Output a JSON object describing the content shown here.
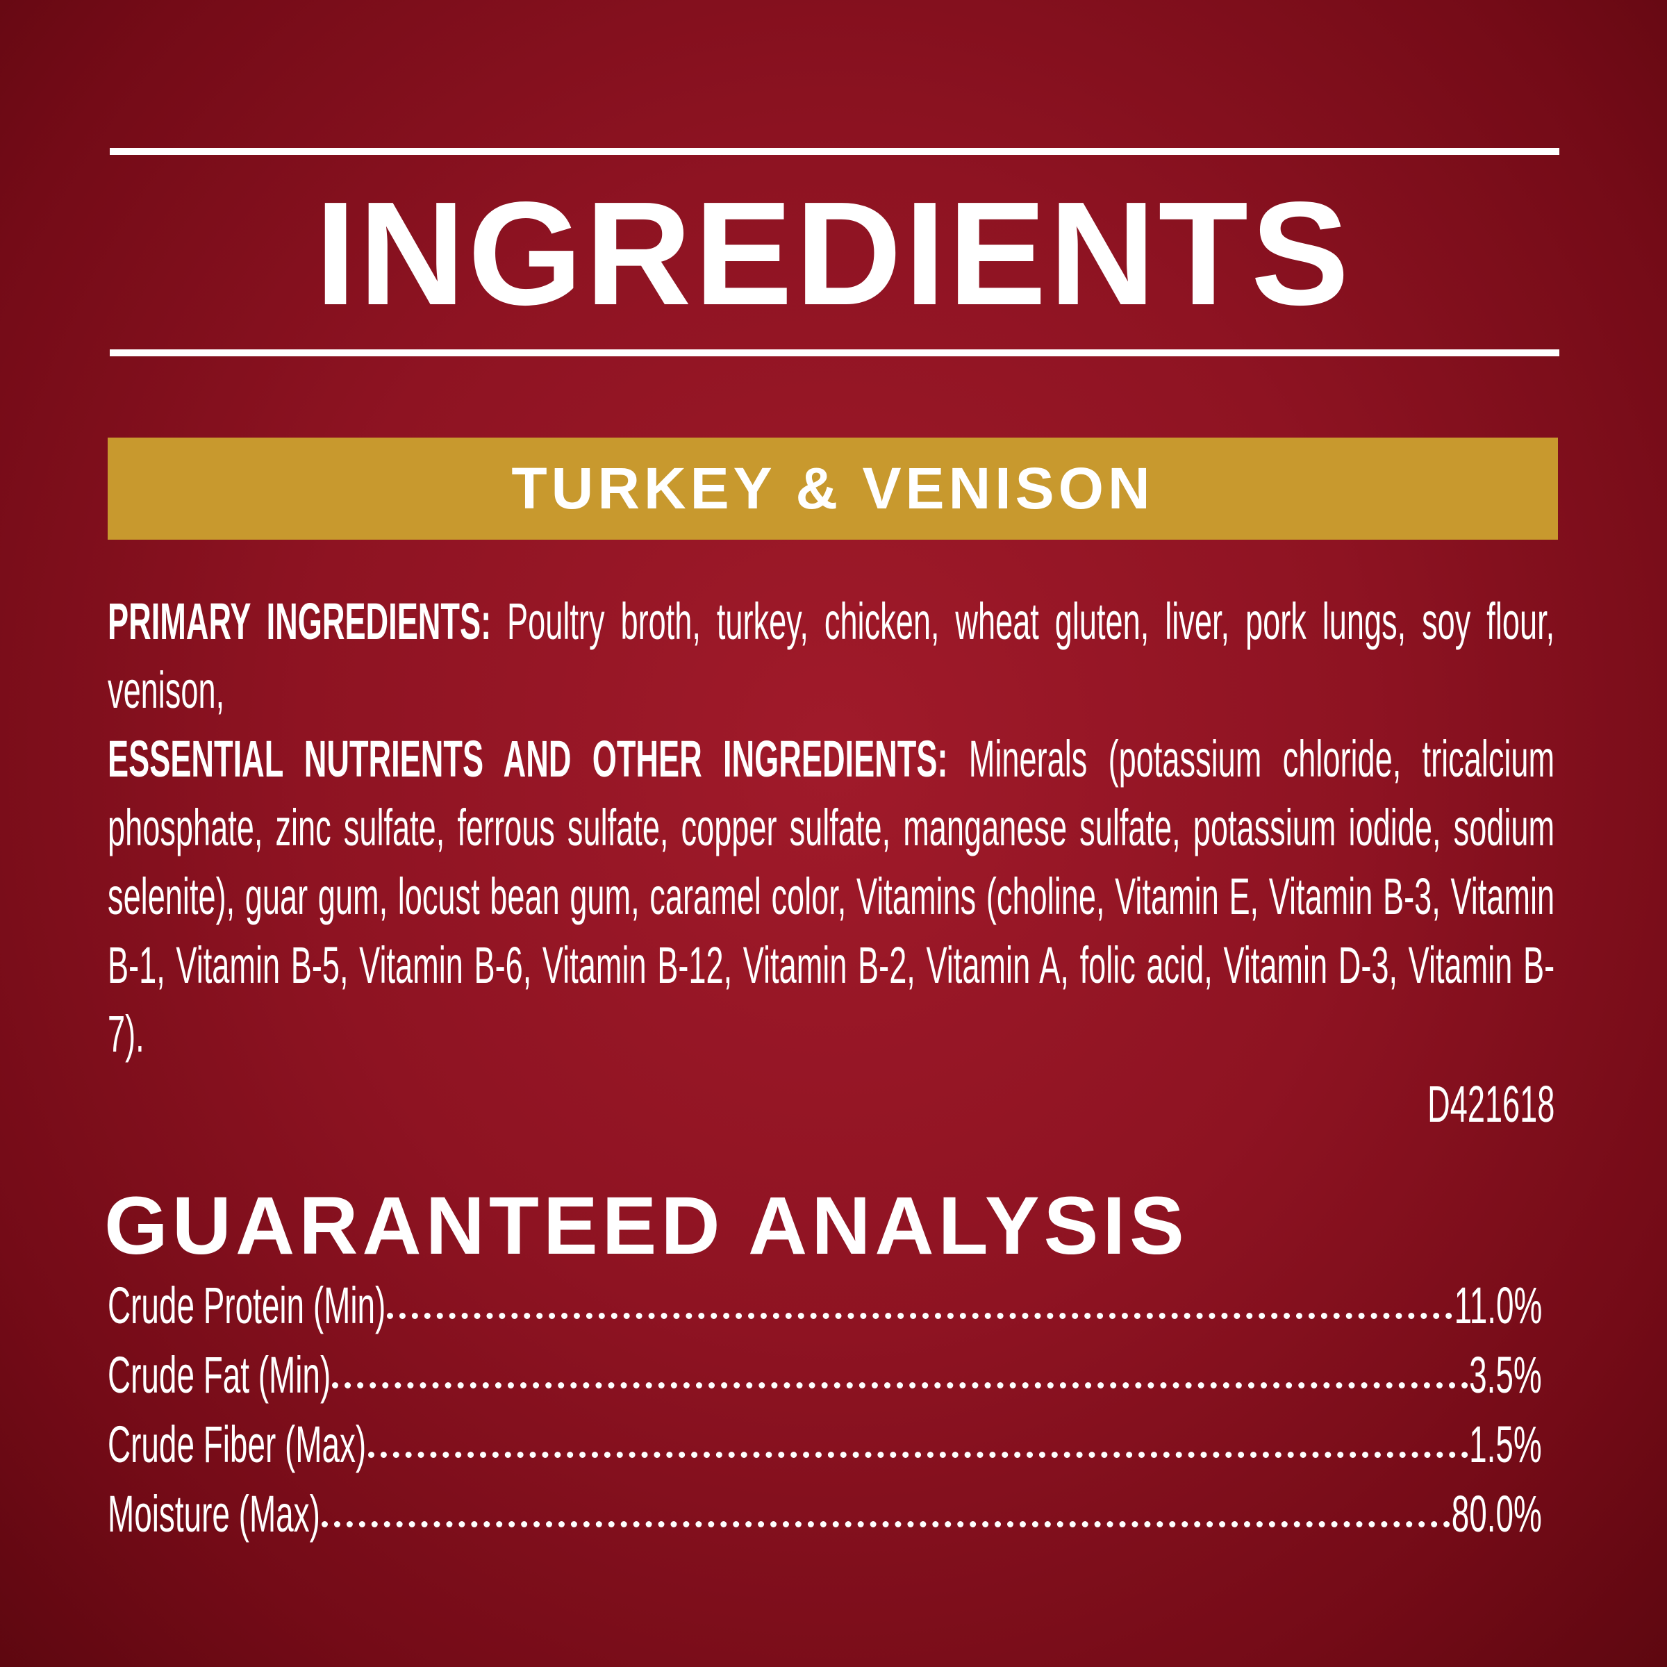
{
  "title": "INGREDIENTS",
  "variety": "TURKEY & VENISON",
  "ingredients": {
    "primary_label": "PRIMARY INGREDIENTS:",
    "primary_text": " Poultry broth, turkey, chicken, wheat gluten, liver, pork lungs, soy flour, venison,",
    "essential_label": "ESSENTIAL NUTRIENTS AND OTHER INGREDIENTS:",
    "essential_text": " Minerals (potassium chloride, tricalcium phosphate, zinc sulfate, ferrous sulfate, copper sulfate, manganese sulfate, potassium iodide, sodium selenite), guar gum, locust bean gum, caramel color, Vitamins (choline, Vitamin E, Vitamin B-3, Vitamin B-1, Vitamin B-5, Vitamin B-6, Vitamin B-12, Vitamin B-2, Vitamin A, folic acid, Vitamin D-3, Vitamin B-7).",
    "code": "D421618"
  },
  "analysis": {
    "title": "GUARANTEED ANALYSIS",
    "rows": [
      {
        "label": "Crude Protein (Min)",
        "value": "11.0%"
      },
      {
        "label": "Crude Fat (Min)",
        "value": "3.5%"
      },
      {
        "label": "Crude Fiber (Max)",
        "value": "1.5%"
      },
      {
        "label": "Moisture (Max)",
        "value": "80.0%"
      }
    ]
  },
  "colors": {
    "background": "#8e1322",
    "band": "#c8992e",
    "text": "#ffffff"
  }
}
